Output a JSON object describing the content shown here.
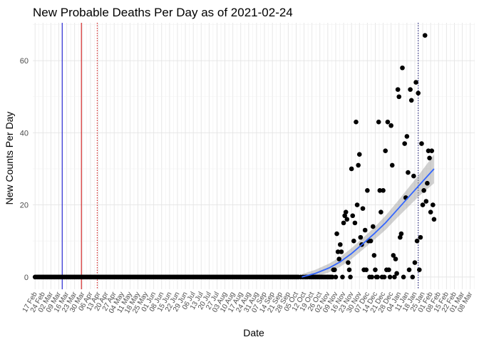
{
  "chart_data": {
    "type": "scatter",
    "title": "New Probable Deaths Per Day as of 2021-02-24",
    "xlabel": "Date",
    "ylabel": "New Counts Per Day",
    "ylim": [
      -3.4,
      70.5
    ],
    "yticks": [
      0,
      20,
      40,
      60
    ],
    "x_start_date": "2020-02-17",
    "xlim_days": [
      -2,
      389
    ],
    "x_tick_labels": [
      "17 Feb",
      "24 Feb",
      "02 Mar",
      "09 Mar",
      "16 Mar",
      "23 Mar",
      "30 Mar",
      "06 Apr",
      "13 Apr",
      "20 Apr",
      "27 Apr",
      "04 May",
      "11 May",
      "18 May",
      "25 May",
      "01 Jun",
      "08 Jun",
      "15 Jun",
      "22 Jun",
      "29 Jun",
      "06 Jul",
      "13 Jul",
      "20 Jul",
      "27 Jul",
      "03 Aug",
      "10 Aug",
      "17 Aug",
      "24 Aug",
      "31 Aug",
      "07 Sep",
      "14 Sep",
      "21 Sep",
      "28 Sep",
      "05 Oct",
      "12 Oct",
      "19 Oct",
      "26 Oct",
      "02 Nov",
      "09 Nov",
      "16 Nov",
      "23 Nov",
      "30 Nov",
      "07 Dec",
      "14 Dec",
      "21 Dec",
      "28 Dec",
      "04 Jan",
      "11 Jan",
      "18 Jan",
      "25 Jan",
      "01 Feb",
      "08 Feb",
      "15 Feb",
      "22 Feb",
      "01 Mar",
      "08 Mar"
    ],
    "grid": true,
    "reference_lines": [
      {
        "day": 24,
        "color": "#0000cc",
        "style": "solid"
      },
      {
        "day": 41,
        "color": "#cc0000",
        "style": "solid"
      },
      {
        "day": 55,
        "color": "#cc0000",
        "style": "dotted"
      },
      {
        "day": 339,
        "color": "#000066",
        "style": "dotted"
      }
    ],
    "zero_days_range": [
      0,
      233
    ],
    "series": [
      {
        "name": "daily probable deaths",
        "color": "#000000",
        "points": [
          [
            233,
            0
          ],
          [
            235,
            0
          ],
          [
            237,
            0
          ],
          [
            239,
            0
          ],
          [
            240,
            0
          ],
          [
            241,
            0
          ],
          [
            243,
            0
          ],
          [
            244,
            0
          ],
          [
            245,
            0
          ],
          [
            246,
            0
          ],
          [
            247,
            0
          ],
          [
            248,
            0
          ],
          [
            249,
            0
          ],
          [
            250,
            0
          ],
          [
            251,
            0
          ],
          [
            252,
            0
          ],
          [
            253,
            0
          ],
          [
            254,
            0
          ],
          [
            255,
            0
          ],
          [
            256,
            0
          ],
          [
            257,
            0
          ],
          [
            258,
            0
          ],
          [
            259,
            0
          ],
          [
            260,
            0
          ],
          [
            261,
            0
          ],
          [
            262,
            0
          ],
          [
            263,
            0
          ],
          [
            264,
            2
          ],
          [
            265,
            2
          ],
          [
            266,
            0
          ],
          [
            267,
            12
          ],
          [
            268,
            7
          ],
          [
            269,
            5
          ],
          [
            270,
            9
          ],
          [
            271,
            7
          ],
          [
            272,
            0
          ],
          [
            273,
            15
          ],
          [
            274,
            17
          ],
          [
            275,
            18
          ],
          [
            276,
            16
          ],
          [
            277,
            4
          ],
          [
            278,
            2
          ],
          [
            279,
            0
          ],
          [
            280,
            30
          ],
          [
            281,
            17
          ],
          [
            282,
            10
          ],
          [
            283,
            15
          ],
          [
            284,
            43
          ],
          [
            285,
            20
          ],
          [
            286,
            31
          ],
          [
            287,
            34
          ],
          [
            288,
            11
          ],
          [
            289,
            9
          ],
          [
            290,
            19
          ],
          [
            291,
            2
          ],
          [
            292,
            13
          ],
          [
            293,
            2
          ],
          [
            294,
            24
          ],
          [
            295,
            10
          ],
          [
            296,
            0
          ],
          [
            297,
            10
          ],
          [
            298,
            0
          ],
          [
            299,
            14
          ],
          [
            300,
            6
          ],
          [
            301,
            2
          ],
          [
            302,
            0
          ],
          [
            303,
            0
          ],
          [
            304,
            43
          ],
          [
            305,
            24
          ],
          [
            306,
            18
          ],
          [
            307,
            0
          ],
          [
            308,
            24
          ],
          [
            309,
            0
          ],
          [
            310,
            35
          ],
          [
            311,
            2
          ],
          [
            312,
            43
          ],
          [
            313,
            2
          ],
          [
            314,
            0
          ],
          [
            315,
            42
          ],
          [
            316,
            31
          ],
          [
            317,
            6
          ],
          [
            318,
            0
          ],
          [
            319,
            5
          ],
          [
            320,
            1
          ],
          [
            321,
            52
          ],
          [
            322,
            50
          ],
          [
            323,
            11
          ],
          [
            324,
            12
          ],
          [
            325,
            58
          ],
          [
            326,
            0
          ],
          [
            327,
            37
          ],
          [
            328,
            22
          ],
          [
            329,
            39
          ],
          [
            330,
            29
          ],
          [
            331,
            2
          ],
          [
            332,
            52
          ],
          [
            333,
            49
          ],
          [
            334,
            0
          ],
          [
            335,
            28
          ],
          [
            336,
            4
          ],
          [
            337,
            54
          ],
          [
            338,
            10
          ],
          [
            339,
            51
          ],
          [
            340,
            2
          ],
          [
            341,
            11
          ],
          [
            342,
            37
          ],
          [
            343,
            20
          ],
          [
            344,
            24
          ],
          [
            345,
            67
          ],
          [
            346,
            21
          ],
          [
            347,
            26
          ],
          [
            348,
            35
          ],
          [
            349,
            33
          ],
          [
            350,
            18
          ],
          [
            351,
            35
          ],
          [
            352,
            20
          ],
          [
            353,
            16
          ]
        ]
      }
    ],
    "trend": {
      "name": "smoothed trend",
      "color": "#3366ff",
      "band_color": "#999999",
      "points": [
        [
          236,
          0
        ],
        [
          248,
          1
        ],
        [
          260,
          2.5
        ],
        [
          270,
          4.2
        ],
        [
          280,
          6.5
        ],
        [
          290,
          9.2
        ],
        [
          300,
          12
        ],
        [
          310,
          15
        ],
        [
          320,
          18.5
        ],
        [
          330,
          22
        ],
        [
          340,
          25.5
        ],
        [
          353,
          30
        ]
      ],
      "band_halfwidth": [
        [
          236,
          0.8
        ],
        [
          260,
          1.2
        ],
        [
          280,
          1.5
        ],
        [
          300,
          1.7
        ],
        [
          320,
          2.2
        ],
        [
          340,
          3
        ],
        [
          353,
          4
        ]
      ]
    }
  }
}
